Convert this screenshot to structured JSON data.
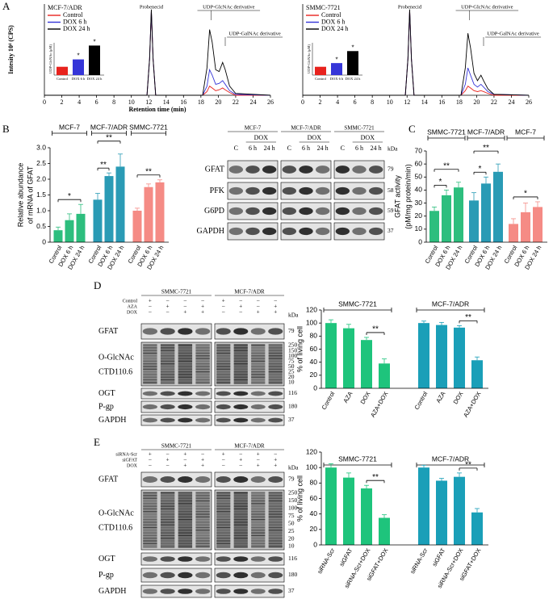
{
  "panel_labels": [
    "A",
    "B",
    "C",
    "D",
    "E"
  ],
  "chart_data": [
    {
      "type": "line",
      "title": "MCF-7/ADR",
      "xlabel": "Retention time (min)",
      "ylabel": "Intesity 10⁴ (CPS)",
      "xlim": [
        0,
        26
      ],
      "xticks": [
        0,
        2,
        4,
        6,
        8,
        10,
        12,
        14,
        16,
        18,
        20,
        22,
        24,
        26
      ],
      "ylim": [
        0,
        100
      ],
      "x": [
        0,
        11.8,
        12.1,
        12.3,
        12.5,
        12.8,
        18.2,
        18.7,
        19.0,
        19.3,
        19.7,
        20.1,
        20.5,
        20.8,
        21.3,
        22,
        26
      ],
      "series": [
        {
          "name": "Control",
          "color": "#e8231e",
          "values": [
            0,
            0,
            40,
            92,
            40,
            0,
            0,
            4,
            10,
            8,
            5,
            6,
            8,
            6,
            3,
            0,
            0
          ]
        },
        {
          "name": "DOX 6 h",
          "color": "#3535d8",
          "values": [
            0,
            0,
            40,
            93,
            40,
            0,
            0,
            10,
            28,
            22,
            12,
            13,
            16,
            12,
            5,
            1,
            0
          ]
        },
        {
          "name": "DOX 24 h",
          "color": "#000000",
          "values": [
            0,
            0,
            40,
            94,
            40,
            0,
            0,
            30,
            72,
            58,
            28,
            26,
            36,
            28,
            10,
            2,
            0
          ]
        }
      ],
      "annotations": [
        "Probenecid",
        "UDP-GlcNAc derivative",
        "UDP-GalNAc derivative"
      ],
      "inset": {
        "type": "bar",
        "ylabel": "UDP-GlcNAc (μM)",
        "ylim": [
          0,
          3.5
        ],
        "categories": [
          "Control",
          "DOX 6 h",
          "DOX 24 h"
        ],
        "values": [
          0.9,
          1.7,
          3.2
        ],
        "colors": [
          "#e8231e",
          "#3535d8",
          "#000000"
        ],
        "significance": [
          "*",
          "*"
        ]
      }
    },
    {
      "type": "line",
      "title": "SMMC-7721",
      "xlim": [
        0,
        26
      ],
      "xticks": [
        0,
        2,
        4,
        6,
        8,
        10,
        12,
        14,
        16,
        18,
        20,
        22,
        24,
        26
      ],
      "ylim": [
        0,
        100
      ],
      "x": [
        0,
        11.8,
        12.1,
        12.3,
        12.5,
        12.8,
        18.2,
        18.7,
        19.0,
        19.3,
        19.7,
        20.1,
        20.5,
        20.8,
        21.3,
        22,
        26
      ],
      "series": [
        {
          "name": "Control",
          "color": "#e8231e",
          "values": [
            0,
            0,
            40,
            93,
            40,
            0,
            0,
            5,
            10,
            8,
            5,
            4,
            5,
            4,
            2,
            0,
            0
          ]
        },
        {
          "name": "DOX 6 h",
          "color": "#3535d8",
          "values": [
            0,
            0,
            40,
            93,
            40,
            0,
            0,
            12,
            30,
            22,
            12,
            9,
            12,
            9,
            4,
            1,
            0
          ]
        },
        {
          "name": "DOX 24 h",
          "color": "#000000",
          "values": [
            0,
            0,
            40,
            94,
            40,
            0,
            0,
            30,
            68,
            52,
            24,
            16,
            22,
            16,
            7,
            1,
            0
          ]
        }
      ],
      "annotations": [
        "Probenecid",
        "UDP-GlcNAc derivative",
        "UDP-GalNAc derivative"
      ],
      "inset": {
        "type": "bar",
        "ylabel": "UDP-GlcNAc (μM)",
        "ylim": [
          0,
          3.5
        ],
        "categories": [
          "Control",
          "DOX 6 h",
          "DOX 24 h"
        ],
        "values": [
          0.9,
          1.3,
          2.6
        ],
        "colors": [
          "#e8231e",
          "#3535d8",
          "#000000"
        ],
        "significance": [
          "*",
          "*"
        ]
      }
    },
    {
      "type": "bar",
      "ylabel": [
        "Relative abundance",
        "of mRNA of GFAT"
      ],
      "ylim": [
        0,
        3
      ],
      "yticks": [
        0,
        0.5,
        {
          "value": 1,
          "label": "1.0"
        },
        1.5,
        {
          "value": 2,
          "label": "2.0"
        },
        2.5,
        {
          "value": 3,
          "label": "3.0"
        }
      ],
      "series": [
        {
          "name": "MCF-7",
          "color": "#2dbe7e",
          "categories": [
            "Control",
            "DOX 6 h",
            "DOX 24 h"
          ],
          "values": [
            0.38,
            0.7,
            0.9
          ],
          "errors": [
            0.1,
            0.2,
            0.3
          ],
          "significance": [
            "*"
          ]
        },
        {
          "name": "MCF-7/ADR",
          "color": "#2a9bb5",
          "categories": [
            "Control",
            "DOX 6 h",
            "DOX 24 h"
          ],
          "values": [
            1.35,
            2.1,
            2.4
          ],
          "errors": [
            0.2,
            0.1,
            0.4
          ],
          "significance": [
            "**",
            "**"
          ]
        },
        {
          "name": "SMMC-7721",
          "color": "#f58b85",
          "categories": [
            "Control",
            "DOX 6 h",
            "DOX 24 h"
          ],
          "values": [
            1.0,
            1.75,
            1.9
          ],
          "errors": [
            0.08,
            0.1,
            0.08
          ],
          "significance": [
            "**"
          ]
        }
      ]
    },
    {
      "type": "bar",
      "ylabel": [
        "GFAT activity",
        "(pM/mg protein/min)"
      ],
      "ylim": [
        0,
        70
      ],
      "yticks": [
        0,
        10,
        20,
        30,
        40,
        50,
        60,
        70
      ],
      "series": [
        {
          "name": "SMMC-7721",
          "color": "#2dbe7e",
          "categories": [
            "Control",
            "DOX 6 h",
            "DOX 24 h"
          ],
          "values": [
            24,
            36,
            42
          ],
          "errors": [
            3,
            4,
            4
          ],
          "significance": [
            "*",
            "**"
          ]
        },
        {
          "name": "MCF-7/ADR",
          "color": "#2a9bb5",
          "categories": [
            "Control",
            "DOX 6 h",
            "DOX 24 h"
          ],
          "values": [
            32,
            45,
            54
          ],
          "errors": [
            6,
            5,
            6
          ],
          "significance": [
            "*",
            "**"
          ]
        },
        {
          "name": "MCF-7",
          "color": "#f58b85",
          "categories": [
            "Control",
            "DOX 6 h",
            "DOX 24 h"
          ],
          "values": [
            14,
            23,
            27
          ],
          "errors": [
            4,
            7,
            4
          ],
          "significance": [
            "*"
          ]
        }
      ]
    },
    {
      "type": "bar",
      "ylabel": "% of living cell",
      "ylim": [
        0,
        120
      ],
      "yticks": [
        0,
        20,
        40,
        60,
        80,
        100,
        120
      ],
      "series": [
        {
          "name": "SMMC-7721",
          "color": "#1ec47c",
          "categories": [
            "Control",
            "AZA",
            "DOX",
            "AZA+DOX"
          ],
          "values": [
            100,
            92,
            74,
            38
          ],
          "errors": [
            5,
            6,
            4,
            7
          ],
          "significance": [
            "**"
          ]
        },
        {
          "name": "MCF-7/ADR",
          "color": "#1a9fb8",
          "categories": [
            "Control",
            "AZA",
            "DOX",
            "AZA+DOX"
          ],
          "values": [
            100,
            97,
            93,
            43
          ],
          "errors": [
            3,
            4,
            3,
            5
          ],
          "significance": [
            "**"
          ]
        }
      ]
    },
    {
      "type": "bar",
      "ylabel": "% of living cell",
      "ylim": [
        0,
        120
      ],
      "yticks": [
        0,
        20,
        40,
        60,
        80,
        100,
        120
      ],
      "series": [
        {
          "name": "SMMC-7721",
          "color": "#1ec47c",
          "categories": [
            "siRNA-Scr",
            "siGFAT",
            "siRNA-Scr+DOX",
            "siGFAT+DOX"
          ],
          "values": [
            100,
            87,
            73,
            35
          ],
          "errors": [
            5,
            6,
            4,
            4
          ],
          "significance": [
            "**"
          ]
        },
        {
          "name": "MCF-7/ADR",
          "color": "#1a9fb8",
          "categories": [
            "siRNA-Scr",
            "siGFAT",
            "siRNA-Scr+DOX",
            "siGFAT+DOX"
          ],
          "values": [
            100,
            83,
            88,
            42
          ],
          "errors": [
            3,
            3,
            5,
            5
          ],
          "significance": [
            "**"
          ]
        }
      ]
    }
  ],
  "blots": {
    "B": {
      "groups": [
        "MCF-7",
        "MCF-7/ADR",
        "SMMC-7721"
      ],
      "treatment": "DOX",
      "lanes": [
        "C",
        "6 h",
        "24 h"
      ],
      "unit": "kDa",
      "rows": [
        {
          "name": "GFAT",
          "kda": 79
        },
        {
          "name": "PFK",
          "kda": 58
        },
        {
          "name": "G6PD",
          "kda": 59
        },
        {
          "name": "GAPDH",
          "kda": 37
        }
      ]
    },
    "D": {
      "groups": [
        "SMMC-7721",
        "MCF-7/ADR"
      ],
      "conditions": [
        {
          "name": "Control",
          "signs": [
            "+",
            "–",
            "–",
            "–"
          ]
        },
        {
          "name": "AZA",
          "signs": [
            "–",
            "+",
            "–",
            "+"
          ]
        },
        {
          "name": "DOX",
          "signs": [
            "–",
            "–",
            "+",
            "+"
          ]
        }
      ],
      "unit": "kDa",
      "rows": [
        {
          "name": "GFAT",
          "kda": 79
        },
        {
          "name": "O-GlcNAc",
          "subname": "CTD110.6",
          "markers": [
            250,
            150,
            100,
            75,
            50,
            25,
            20,
            10
          ]
        },
        {
          "name": "OGT",
          "kda": 116
        },
        {
          "name": "P-gp",
          "kda": 180
        },
        {
          "name": "GAPDH",
          "kda": 37
        }
      ]
    },
    "E": {
      "groups": [
        "SMMC-7721",
        "MCF-7/ADR"
      ],
      "conditions": [
        {
          "name": "siRNA-Scr",
          "signs": [
            "+",
            "–",
            "+",
            "–"
          ]
        },
        {
          "name": "siGFAT",
          "signs": [
            "–",
            "+",
            "–",
            "+"
          ]
        },
        {
          "name": "DOX",
          "signs": [
            "–",
            "–",
            "+",
            "+"
          ]
        }
      ],
      "unit": "kDa",
      "rows": [
        {
          "name": "GFAT",
          "kda": 79
        },
        {
          "name": "O-GlcNAc",
          "subname": "CTD110.6",
          "markers": [
            250,
            150,
            100,
            75,
            50,
            25,
            20,
            10
          ]
        },
        {
          "name": "OGT",
          "kda": 116
        },
        {
          "name": "P-gp",
          "kda": 180
        },
        {
          "name": "GAPDH",
          "kda": 37
        }
      ]
    }
  }
}
